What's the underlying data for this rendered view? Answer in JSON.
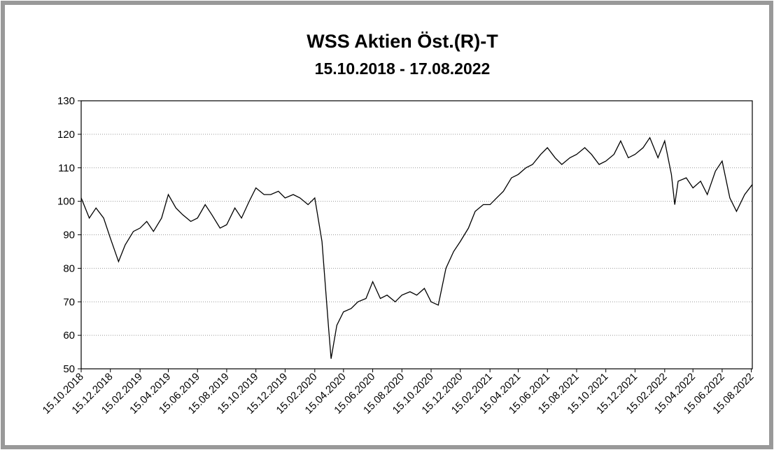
{
  "chart_data": {
    "type": "line",
    "title": "WSS Aktien Öst.(R)-T",
    "subtitle": "15.10.2018 - 17.08.2022",
    "x": [
      "15.10.2018",
      "01.11.2018",
      "15.11.2018",
      "01.12.2018",
      "15.12.2018",
      "01.01.2019",
      "15.01.2019",
      "01.02.2019",
      "15.02.2019",
      "01.03.2019",
      "15.03.2019",
      "01.04.2019",
      "15.04.2019",
      "01.05.2019",
      "15.05.2019",
      "01.06.2019",
      "15.06.2019",
      "01.07.2019",
      "15.07.2019",
      "01.08.2019",
      "15.08.2019",
      "01.09.2019",
      "15.09.2019",
      "01.10.2019",
      "15.10.2019",
      "01.11.2019",
      "15.11.2019",
      "01.12.2019",
      "15.12.2019",
      "01.01.2020",
      "15.01.2020",
      "01.02.2020",
      "15.02.2020",
      "01.03.2020",
      "15.03.2020",
      "20.03.2020",
      "01.04.2020",
      "15.04.2020",
      "01.05.2020",
      "15.05.2020",
      "01.06.2020",
      "15.06.2020",
      "01.07.2020",
      "15.07.2020",
      "01.08.2020",
      "15.08.2020",
      "01.09.2020",
      "15.09.2020",
      "01.10.2020",
      "15.10.2020",
      "30.10.2020",
      "15.11.2020",
      "01.12.2020",
      "15.12.2020",
      "01.01.2021",
      "15.01.2021",
      "01.02.2021",
      "15.02.2021",
      "01.03.2021",
      "15.03.2021",
      "01.04.2021",
      "15.04.2021",
      "01.05.2021",
      "15.05.2021",
      "01.06.2021",
      "15.06.2021",
      "01.07.2021",
      "15.07.2021",
      "01.08.2021",
      "15.08.2021",
      "01.09.2021",
      "15.09.2021",
      "01.10.2021",
      "15.10.2021",
      "01.11.2021",
      "15.11.2021",
      "01.12.2021",
      "15.12.2021",
      "01.01.2022",
      "15.01.2022",
      "01.02.2022",
      "15.02.2022",
      "01.03.2022",
      "08.03.2022",
      "15.03.2022",
      "01.04.2022",
      "15.04.2022",
      "01.05.2022",
      "15.05.2022",
      "01.06.2022",
      "15.06.2022",
      "01.07.2022",
      "15.07.2022",
      "01.08.2022",
      "17.08.2022"
    ],
    "values": [
      101,
      95,
      98,
      95,
      89,
      82,
      87,
      91,
      92,
      94,
      91,
      95,
      102,
      98,
      96,
      94,
      95,
      99,
      96,
      92,
      93,
      98,
      95,
      100,
      104,
      102,
      102,
      103,
      101,
      102,
      101,
      99,
      101,
      88,
      62,
      53,
      63,
      67,
      68,
      70,
      71,
      76,
      71,
      72,
      70,
      72,
      73,
      72,
      74,
      70,
      69,
      80,
      85,
      88,
      92,
      97,
      99,
      99,
      101,
      103,
      107,
      108,
      110,
      111,
      114,
      116,
      113,
      111,
      113,
      114,
      116,
      114,
      111,
      112,
      114,
      118,
      113,
      114,
      116,
      119,
      113,
      118,
      108,
      99,
      106,
      107,
      104,
      106,
      102,
      109,
      112,
      101,
      97,
      102,
      105
    ],
    "color": "#000000",
    "xlim": [
      "15.10.2018",
      "17.08.2022"
    ],
    "xticks": [
      "15.10.2018",
      "15.12.2018",
      "15.02.2019",
      "15.04.2019",
      "15.06.2019",
      "15.08.2019",
      "15.10.2019",
      "15.12.2019",
      "15.02.2020",
      "15.04.2020",
      "15.06.2020",
      "15.08.2020",
      "15.10.2020",
      "15.12.2020",
      "15.02.2021",
      "15.04.2021",
      "15.06.2021",
      "15.08.2021",
      "15.10.2021",
      "15.12.2021",
      "15.02.2022",
      "15.04.2022",
      "15.06.2022",
      "15.08.2022"
    ],
    "ylim": [
      50,
      130
    ],
    "yticks": [
      50,
      60,
      70,
      80,
      90,
      100,
      110,
      120,
      130
    ],
    "grid": true
  }
}
